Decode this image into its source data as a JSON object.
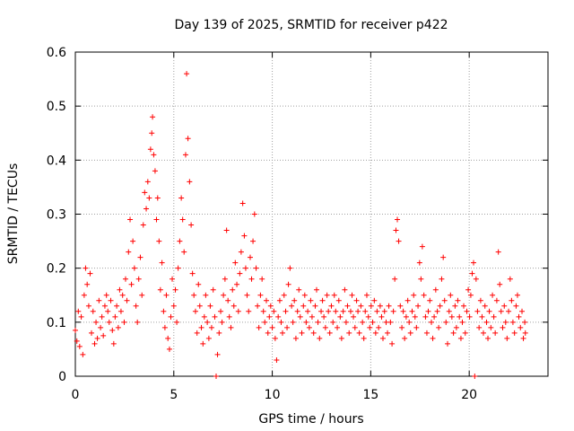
{
  "chart_data": {
    "type": "scatter",
    "title": "Day 139 of 2025, SRMTID for receiver p422",
    "xlabel": "GPS time / hours",
    "ylabel": "SRMTID / TECUs",
    "xlim": [
      0,
      24
    ],
    "ylim": [
      0,
      0.6
    ],
    "xticks": [
      0,
      5,
      10,
      15,
      20
    ],
    "xtick_labels": [
      "0",
      "5",
      "10",
      "15",
      "20"
    ],
    "yticks": [
      0,
      0.1,
      0.2,
      0.3,
      0.4,
      0.5,
      0.6
    ],
    "ytick_labels": [
      "0",
      "0.1",
      "0.2",
      "0.3",
      "0.4",
      "0.5",
      "0.6"
    ],
    "grid": true,
    "marker": "+",
    "color": "#ff0000",
    "series": [
      {
        "name": "SRMTID",
        "points": [
          [
            0.0,
            0.085
          ],
          [
            0.08,
            0.065
          ],
          [
            0.15,
            0.12
          ],
          [
            0.22,
            0.055
          ],
          [
            0.3,
            0.11
          ],
          [
            0.38,
            0.04
          ],
          [
            0.45,
            0.15
          ],
          [
            0.52,
            0.2
          ],
          [
            0.6,
            0.17
          ],
          [
            0.68,
            0.13
          ],
          [
            0.75,
            0.19
          ],
          [
            0.82,
            0.08
          ],
          [
            0.9,
            0.12
          ],
          [
            0.98,
            0.06
          ],
          [
            1.05,
            0.1
          ],
          [
            1.12,
            0.07
          ],
          [
            1.2,
            0.14
          ],
          [
            1.28,
            0.09
          ],
          [
            1.35,
            0.11
          ],
          [
            1.42,
            0.075
          ],
          [
            1.5,
            0.13
          ],
          [
            1.58,
            0.15
          ],
          [
            1.65,
            0.12
          ],
          [
            1.72,
            0.1
          ],
          [
            1.8,
            0.14
          ],
          [
            1.88,
            0.085
          ],
          [
            1.95,
            0.06
          ],
          [
            2.02,
            0.11
          ],
          [
            2.1,
            0.13
          ],
          [
            2.18,
            0.09
          ],
          [
            2.25,
            0.16
          ],
          [
            2.32,
            0.12
          ],
          [
            2.4,
            0.15
          ],
          [
            2.48,
            0.1
          ],
          [
            2.55,
            0.18
          ],
          [
            2.62,
            0.14
          ],
          [
            2.7,
            0.23
          ],
          [
            2.78,
            0.29
          ],
          [
            2.85,
            0.17
          ],
          [
            2.92,
            0.25
          ],
          [
            3.0,
            0.2
          ],
          [
            3.08,
            0.13
          ],
          [
            3.15,
            0.1
          ],
          [
            3.22,
            0.18
          ],
          [
            3.3,
            0.22
          ],
          [
            3.38,
            0.15
          ],
          [
            3.45,
            0.28
          ],
          [
            3.52,
            0.34
          ],
          [
            3.6,
            0.31
          ],
          [
            3.68,
            0.36
          ],
          [
            3.75,
            0.33
          ],
          [
            3.82,
            0.42
          ],
          [
            3.88,
            0.45
          ],
          [
            3.92,
            0.48
          ],
          [
            3.98,
            0.41
          ],
          [
            4.05,
            0.38
          ],
          [
            4.12,
            0.29
          ],
          [
            4.18,
            0.33
          ],
          [
            4.25,
            0.25
          ],
          [
            4.32,
            0.16
          ],
          [
            4.4,
            0.21
          ],
          [
            4.48,
            0.12
          ],
          [
            4.55,
            0.09
          ],
          [
            4.62,
            0.15
          ],
          [
            4.7,
            0.07
          ],
          [
            4.78,
            0.05
          ],
          [
            4.85,
            0.11
          ],
          [
            4.92,
            0.18
          ],
          [
            5.0,
            0.13
          ],
          [
            5.08,
            0.16
          ],
          [
            5.15,
            0.1
          ],
          [
            5.22,
            0.2
          ],
          [
            5.3,
            0.25
          ],
          [
            5.38,
            0.33
          ],
          [
            5.45,
            0.29
          ],
          [
            5.52,
            0.23
          ],
          [
            5.6,
            0.41
          ],
          [
            5.65,
            0.56
          ],
          [
            5.72,
            0.44
          ],
          [
            5.8,
            0.36
          ],
          [
            5.88,
            0.28
          ],
          [
            5.95,
            0.19
          ],
          [
            6.02,
            0.15
          ],
          [
            6.1,
            0.12
          ],
          [
            6.18,
            0.08
          ],
          [
            6.25,
            0.17
          ],
          [
            6.32,
            0.13
          ],
          [
            6.4,
            0.09
          ],
          [
            6.48,
            0.06
          ],
          [
            6.55,
            0.11
          ],
          [
            6.62,
            0.15
          ],
          [
            6.7,
            0.1
          ],
          [
            6.78,
            0.07
          ],
          [
            6.85,
            0.13
          ],
          [
            6.92,
            0.09
          ],
          [
            7.0,
            0.16
          ],
          [
            7.08,
            0.11
          ],
          [
            7.15,
            0.0
          ],
          [
            7.22,
            0.04
          ],
          [
            7.3,
            0.08
          ],
          [
            7.38,
            0.12
          ],
          [
            7.45,
            0.1
          ],
          [
            7.52,
            0.15
          ],
          [
            7.6,
            0.18
          ],
          [
            7.68,
            0.27
          ],
          [
            7.75,
            0.14
          ],
          [
            7.82,
            0.11
          ],
          [
            7.9,
            0.09
          ],
          [
            7.98,
            0.16
          ],
          [
            8.05,
            0.13
          ],
          [
            8.12,
            0.21
          ],
          [
            8.2,
            0.17
          ],
          [
            8.28,
            0.12
          ],
          [
            8.35,
            0.19
          ],
          [
            8.42,
            0.23
          ],
          [
            8.5,
            0.32
          ],
          [
            8.58,
            0.26
          ],
          [
            8.65,
            0.2
          ],
          [
            8.72,
            0.15
          ],
          [
            8.8,
            0.12
          ],
          [
            8.88,
            0.22
          ],
          [
            8.95,
            0.18
          ],
          [
            9.02,
            0.25
          ],
          [
            9.1,
            0.3
          ],
          [
            9.18,
            0.2
          ],
          [
            9.25,
            0.13
          ],
          [
            9.32,
            0.09
          ],
          [
            9.4,
            0.15
          ],
          [
            9.48,
            0.18
          ],
          [
            9.55,
            0.12
          ],
          [
            9.62,
            0.1
          ],
          [
            9.7,
            0.14
          ],
          [
            9.78,
            0.08
          ],
          [
            9.85,
            0.11
          ],
          [
            9.92,
            0.13
          ],
          [
            10.0,
            0.09
          ],
          [
            10.08,
            0.12
          ],
          [
            10.15,
            0.07
          ],
          [
            10.22,
            0.03
          ],
          [
            10.3,
            0.11
          ],
          [
            10.38,
            0.14
          ],
          [
            10.45,
            0.1
          ],
          [
            10.52,
            0.08
          ],
          [
            10.6,
            0.15
          ],
          [
            10.68,
            0.12
          ],
          [
            10.75,
            0.09
          ],
          [
            10.82,
            0.17
          ],
          [
            10.9,
            0.2
          ],
          [
            10.98,
            0.13
          ],
          [
            11.05,
            0.1
          ],
          [
            11.12,
            0.14
          ],
          [
            11.2,
            0.07
          ],
          [
            11.28,
            0.12
          ],
          [
            11.35,
            0.16
          ],
          [
            11.42,
            0.11
          ],
          [
            11.5,
            0.08
          ],
          [
            11.58,
            0.13
          ],
          [
            11.65,
            0.15
          ],
          [
            11.72,
            0.1
          ],
          [
            11.8,
            0.12
          ],
          [
            11.88,
            0.09
          ],
          [
            11.95,
            0.14
          ],
          [
            12.02,
            0.11
          ],
          [
            12.1,
            0.08
          ],
          [
            12.18,
            0.13
          ],
          [
            12.25,
            0.16
          ],
          [
            12.32,
            0.1
          ],
          [
            12.4,
            0.07
          ],
          [
            12.48,
            0.12
          ],
          [
            12.55,
            0.14
          ],
          [
            12.62,
            0.11
          ],
          [
            12.7,
            0.09
          ],
          [
            12.78,
            0.15
          ],
          [
            12.85,
            0.12
          ],
          [
            12.92,
            0.08
          ],
          [
            13.0,
            0.13
          ],
          [
            13.08,
            0.1
          ],
          [
            13.15,
            0.15
          ],
          [
            13.22,
            0.12
          ],
          [
            13.3,
            0.09
          ],
          [
            13.38,
            0.14
          ],
          [
            13.45,
            0.11
          ],
          [
            13.52,
            0.07
          ],
          [
            13.6,
            0.12
          ],
          [
            13.68,
            0.16
          ],
          [
            13.75,
            0.1
          ],
          [
            13.82,
            0.13
          ],
          [
            13.9,
            0.08
          ],
          [
            13.98,
            0.12
          ],
          [
            14.05,
            0.15
          ],
          [
            14.12,
            0.11
          ],
          [
            14.2,
            0.09
          ],
          [
            14.28,
            0.14
          ],
          [
            14.35,
            0.12
          ],
          [
            14.42,
            0.08
          ],
          [
            14.5,
            0.13
          ],
          [
            14.58,
            0.1
          ],
          [
            14.65,
            0.07
          ],
          [
            14.72,
            0.12
          ],
          [
            14.8,
            0.15
          ],
          [
            14.88,
            0.11
          ],
          [
            14.95,
            0.09
          ],
          [
            15.02,
            0.13
          ],
          [
            15.1,
            0.1
          ],
          [
            15.18,
            0.14
          ],
          [
            15.25,
            0.08
          ],
          [
            15.32,
            0.12
          ],
          [
            15.4,
            0.09
          ],
          [
            15.48,
            0.13
          ],
          [
            15.55,
            0.11
          ],
          [
            15.62,
            0.07
          ],
          [
            15.7,
            0.12
          ],
          [
            15.78,
            0.1
          ],
          [
            15.85,
            0.08
          ],
          [
            15.92,
            0.13
          ],
          [
            16.0,
            0.1
          ],
          [
            16.08,
            0.06
          ],
          [
            16.15,
            0.12
          ],
          [
            16.22,
            0.18
          ],
          [
            16.28,
            0.27
          ],
          [
            16.35,
            0.29
          ],
          [
            16.42,
            0.25
          ],
          [
            16.5,
            0.13
          ],
          [
            16.58,
            0.09
          ],
          [
            16.65,
            0.12
          ],
          [
            16.72,
            0.07
          ],
          [
            16.8,
            0.11
          ],
          [
            16.88,
            0.14
          ],
          [
            16.95,
            0.1
          ],
          [
            17.02,
            0.08
          ],
          [
            17.1,
            0.12
          ],
          [
            17.18,
            0.15
          ],
          [
            17.25,
            0.11
          ],
          [
            17.32,
            0.09
          ],
          [
            17.4,
            0.13
          ],
          [
            17.48,
            0.21
          ],
          [
            17.55,
            0.18
          ],
          [
            17.62,
            0.24
          ],
          [
            17.7,
            0.15
          ],
          [
            17.78,
            0.11
          ],
          [
            17.85,
            0.08
          ],
          [
            17.92,
            0.12
          ],
          [
            18.0,
            0.14
          ],
          [
            18.08,
            0.1
          ],
          [
            18.15,
            0.07
          ],
          [
            18.22,
            0.11
          ],
          [
            18.3,
            0.16
          ],
          [
            18.38,
            0.12
          ],
          [
            18.45,
            0.09
          ],
          [
            18.52,
            0.13
          ],
          [
            18.6,
            0.18
          ],
          [
            18.68,
            0.22
          ],
          [
            18.75,
            0.14
          ],
          [
            18.82,
            0.1
          ],
          [
            18.9,
            0.06
          ],
          [
            18.98,
            0.12
          ],
          [
            19.05,
            0.15
          ],
          [
            19.12,
            0.11
          ],
          [
            19.2,
            0.08
          ],
          [
            19.28,
            0.13
          ],
          [
            19.35,
            0.09
          ],
          [
            19.42,
            0.14
          ],
          [
            19.5,
            0.11
          ],
          [
            19.58,
            0.07
          ],
          [
            19.65,
            0.1
          ],
          [
            19.72,
            0.13
          ],
          [
            19.8,
            0.08
          ],
          [
            19.88,
            0.12
          ],
          [
            19.95,
            0.16
          ],
          [
            20.02,
            0.11
          ],
          [
            20.08,
            0.15
          ],
          [
            20.15,
            0.19
          ],
          [
            20.22,
            0.21
          ],
          [
            20.28,
            0.0
          ],
          [
            20.35,
            0.18
          ],
          [
            20.42,
            0.12
          ],
          [
            20.5,
            0.09
          ],
          [
            20.58,
            0.14
          ],
          [
            20.65,
            0.11
          ],
          [
            20.72,
            0.08
          ],
          [
            20.8,
            0.13
          ],
          [
            20.88,
            0.1
          ],
          [
            20.95,
            0.07
          ],
          [
            21.02,
            0.12
          ],
          [
            21.1,
            0.09
          ],
          [
            21.18,
            0.15
          ],
          [
            21.25,
            0.11
          ],
          [
            21.32,
            0.08
          ],
          [
            21.4,
            0.14
          ],
          [
            21.48,
            0.23
          ],
          [
            21.55,
            0.17
          ],
          [
            21.62,
            0.12
          ],
          [
            21.7,
            0.09
          ],
          [
            21.78,
            0.13
          ],
          [
            21.85,
            0.1
          ],
          [
            21.92,
            0.07
          ],
          [
            22.0,
            0.12
          ],
          [
            22.08,
            0.18
          ],
          [
            22.15,
            0.14
          ],
          [
            22.22,
            0.1
          ],
          [
            22.3,
            0.08
          ],
          [
            22.38,
            0.13
          ],
          [
            22.45,
            0.15
          ],
          [
            22.52,
            0.11
          ],
          [
            22.6,
            0.09
          ],
          [
            22.68,
            0.12
          ],
          [
            22.75,
            0.07
          ],
          [
            22.82,
            0.1
          ],
          [
            22.85,
            0.08
          ]
        ]
      }
    ]
  }
}
